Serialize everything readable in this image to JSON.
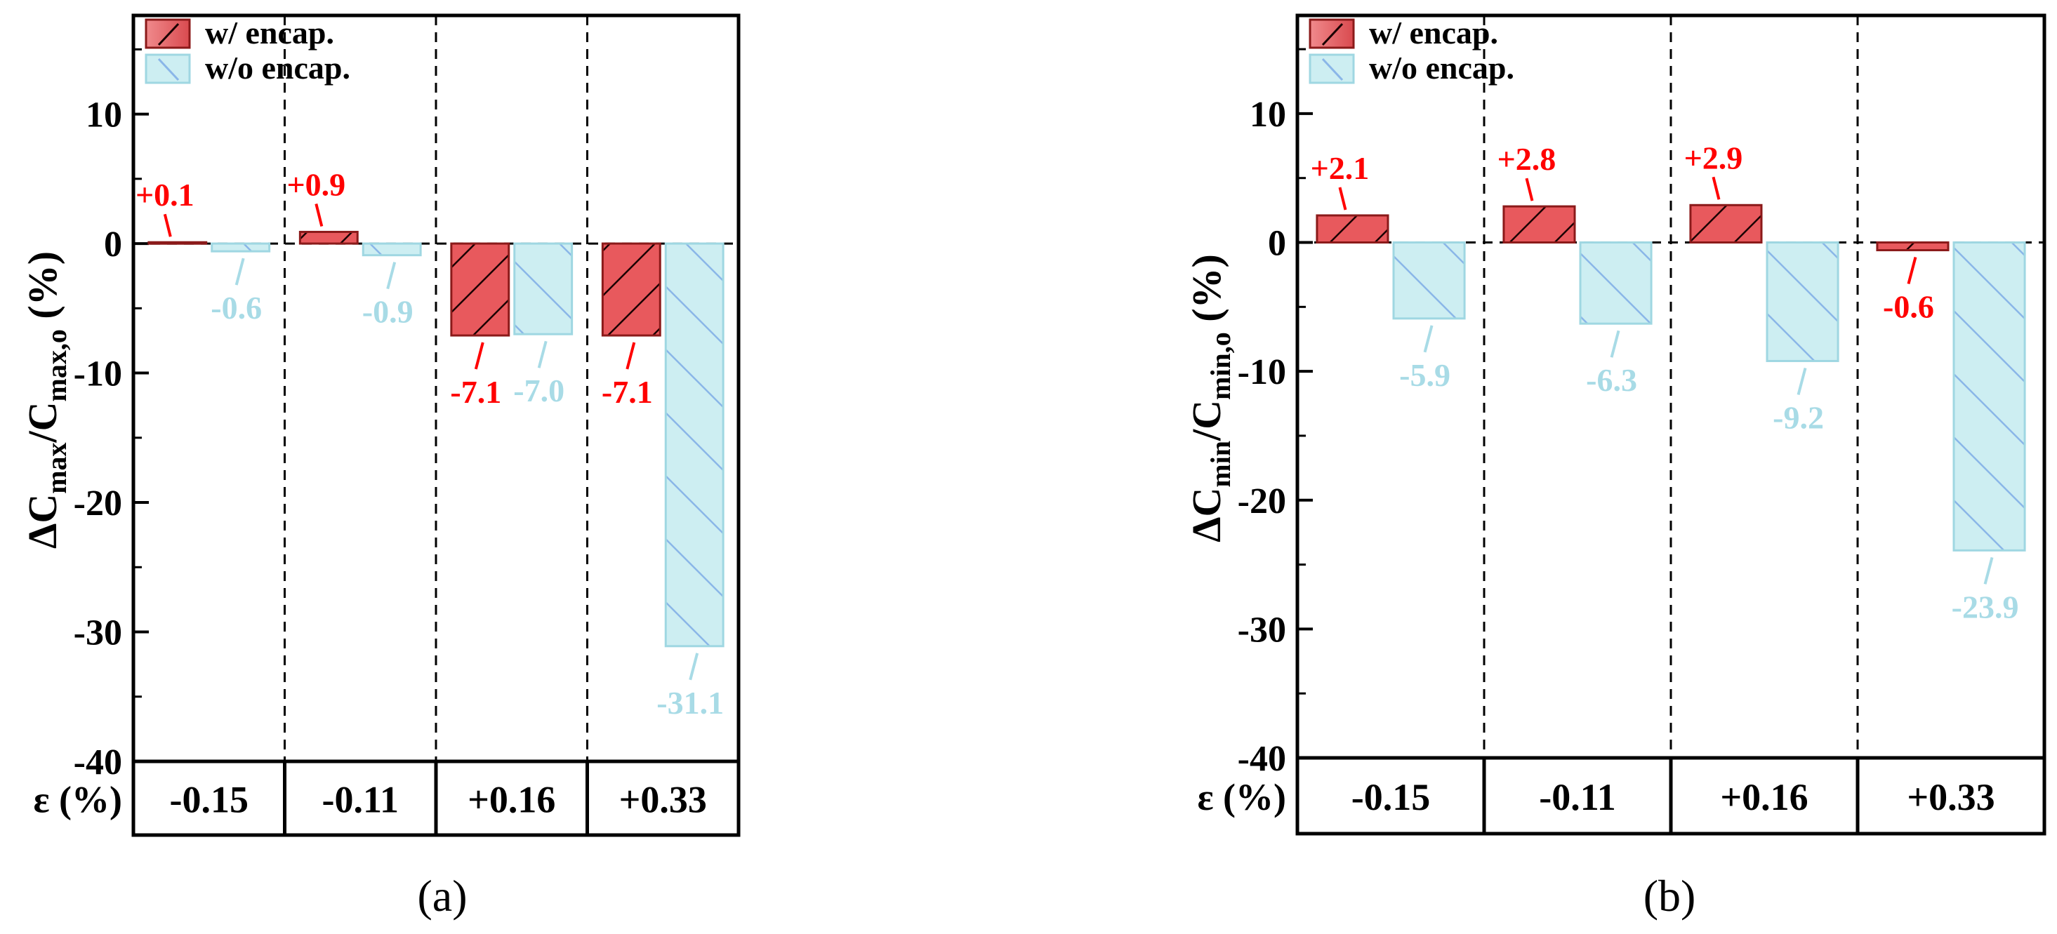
{
  "colors": {
    "encap_fill": "#e8595d",
    "encap_fill_light": "#f08a8c",
    "encap_edge": "#8b1a1a",
    "encap_label": "#ff0000",
    "noencap_fill": "#cdeef2",
    "noencap_edge": "#9fd7e2",
    "noencap_hatch": "#8ab6e8",
    "noencap_label": "#a8dbe6"
  },
  "chart_data": [
    {
      "type": "bar",
      "panel_label": "(a)",
      "ylabel_parts": {
        "delta": "ΔC",
        "sub1": "max",
        "slash": "/C",
        "sub2": "max,o",
        "unit": " (%)"
      },
      "ylim": [
        -40,
        18
      ],
      "yticks": [
        10,
        0,
        -10,
        -20,
        -30,
        -40
      ],
      "ytick_labels": [
        "10",
        "0",
        "-10",
        "-20",
        "-30",
        "-40"
      ],
      "x_axis_label": "ε (%)",
      "categories": [
        "-0.15",
        "-0.11",
        "+0.16",
        "+0.33"
      ],
      "series": [
        {
          "name": "w/ encap.",
          "values": [
            0.1,
            0.9,
            -7.1,
            -7.1
          ],
          "labels": [
            "+0.1",
            "+0.9",
            "-7.1",
            "-7.1"
          ]
        },
        {
          "name": "w/o encap.",
          "values": [
            -0.6,
            -0.9,
            -7.0,
            -31.1
          ],
          "labels": [
            "-0.6",
            "-0.9",
            "-7.0",
            "-31.1"
          ]
        }
      ],
      "legend": [
        "w/ encap.",
        "w/o encap."
      ],
      "legend_position": "top-left"
    },
    {
      "type": "bar",
      "panel_label": "(b)",
      "ylabel_parts": {
        "delta": "ΔC",
        "sub1": "min",
        "slash": "/C",
        "sub2": "min,o",
        "unit": " (%)"
      },
      "ylim": [
        -40,
        18
      ],
      "yticks": [
        10,
        0,
        -10,
        -20,
        -30,
        -40
      ],
      "ytick_labels": [
        "10",
        "0",
        "-10",
        "-20",
        "-30",
        "-40"
      ],
      "x_axis_label": "ε (%)",
      "categories": [
        "-0.15",
        "-0.11",
        "+0.16",
        "+0.33"
      ],
      "series": [
        {
          "name": "w/ encap.",
          "values": [
            2.1,
            2.8,
            2.9,
            -0.6
          ],
          "labels": [
            "+2.1",
            "+2.8",
            "+2.9",
            "-0.6"
          ]
        },
        {
          "name": "w/o encap.",
          "values": [
            -5.9,
            -6.3,
            -9.2,
            -23.9
          ],
          "labels": [
            "-5.9",
            "-6.3",
            "-9.2",
            "-23.9"
          ]
        }
      ],
      "legend": [
        "w/ encap.",
        "w/o encap."
      ],
      "legend_position": "top-left"
    }
  ]
}
